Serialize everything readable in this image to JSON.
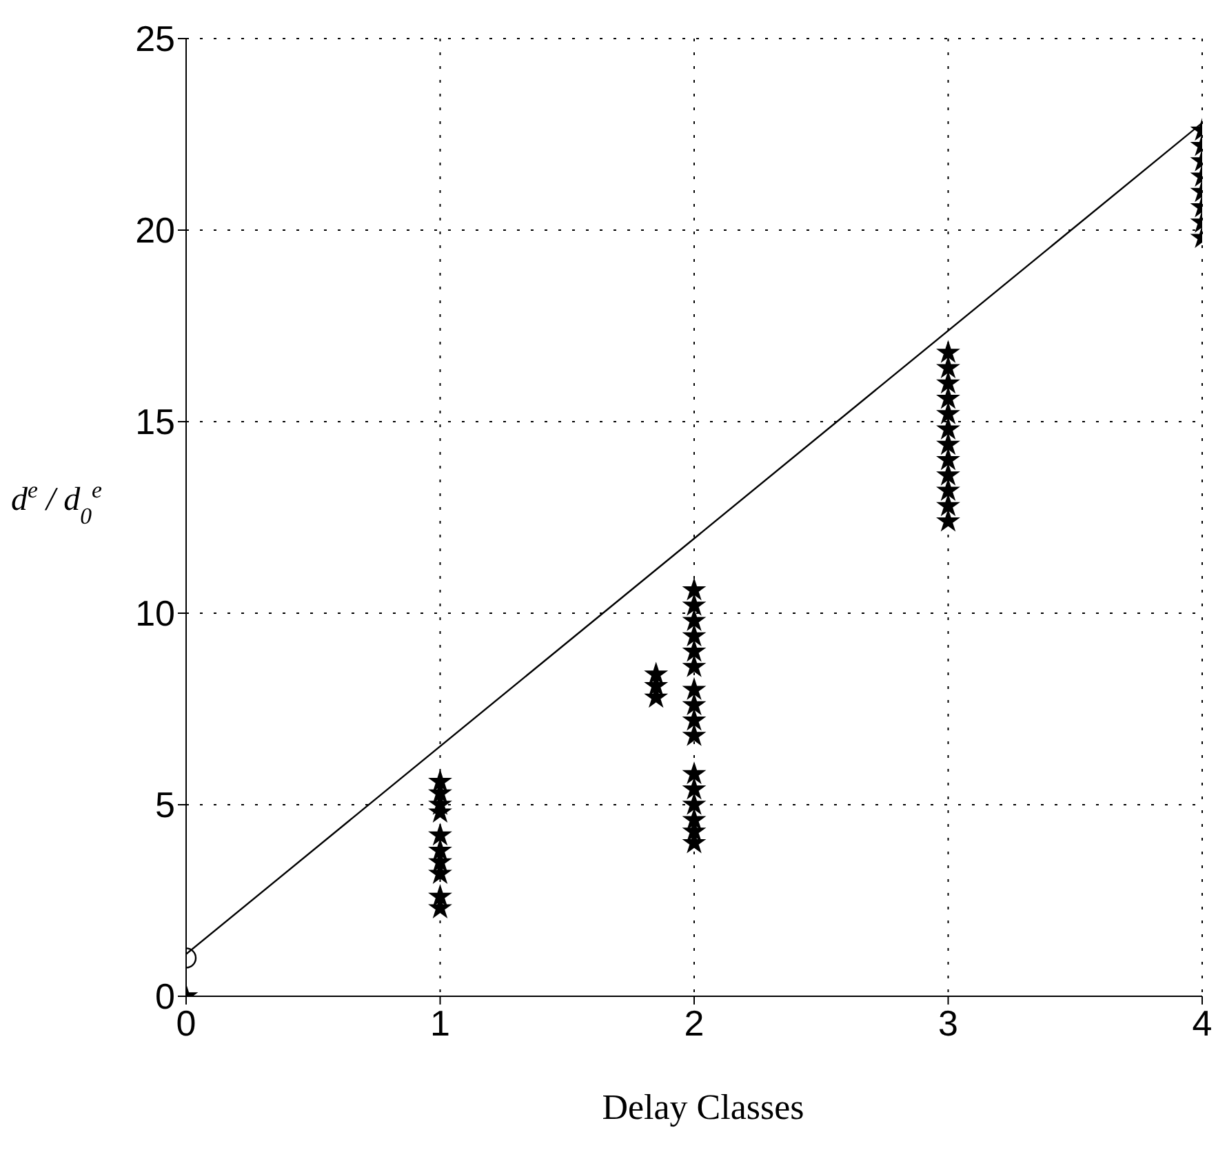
{
  "chart_data": {
    "type": "scatter",
    "xlabel": "Delay Classes",
    "ylabel": "d$^{e}$ / d$_{0}$$^{e}$",
    "xlim": [
      0,
      4
    ],
    "xticks": [
      0,
      1,
      2,
      3,
      4
    ],
    "ylim": [
      0,
      25
    ],
    "yticks": [
      0,
      5,
      10,
      15,
      20,
      25
    ],
    "grid": true,
    "series": [
      {
        "marker": "star",
        "color": "#000000",
        "x": [
          0,
          1,
          1,
          1,
          1,
          1,
          1,
          1,
          1,
          1,
          1,
          1.85,
          1.85,
          1.85,
          2,
          2,
          2,
          2,
          2,
          2,
          2,
          2,
          2,
          2,
          2,
          2,
          2,
          2,
          2,
          2,
          3,
          3,
          3,
          3,
          3,
          3,
          3,
          3,
          3,
          3,
          3,
          3,
          4,
          4,
          4,
          4,
          4,
          4,
          4,
          4
        ],
        "values": [
          0,
          2.3,
          2.6,
          3.2,
          3.5,
          3.8,
          4.2,
          4.8,
          5.0,
          5.3,
          5.6,
          7.8,
          8.1,
          8.4,
          4.0,
          4.3,
          4.6,
          5.0,
          5.4,
          5.8,
          6.8,
          7.2,
          7.6,
          8.0,
          8.6,
          9.0,
          9.4,
          9.8,
          10.2,
          10.6,
          12.4,
          12.8,
          13.2,
          13.6,
          14.0,
          14.4,
          14.8,
          15.2,
          15.6,
          16.0,
          16.4,
          16.8,
          19.8,
          20.2,
          20.6,
          21.0,
          21.4,
          21.8,
          22.2,
          22.6
        ]
      },
      {
        "marker": "circle",
        "color": "#000000",
        "x": [
          0
        ],
        "values": [
          1
        ]
      },
      {
        "type": "line",
        "marker": "none",
        "line_style": "solid",
        "color": "#000000",
        "x": [
          0,
          4
        ],
        "values": [
          1.1,
          22.8
        ]
      }
    ]
  }
}
